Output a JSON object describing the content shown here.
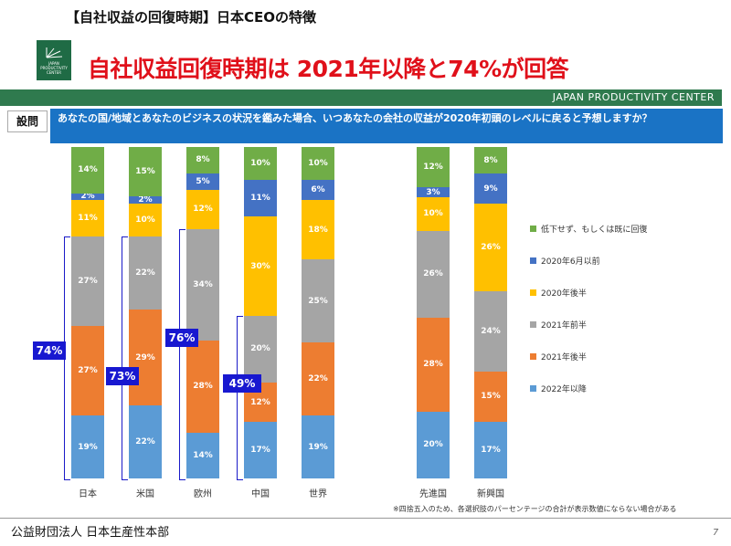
{
  "header": {
    "subtitle": "【自社収益の回復時期】日本CEOの特徴",
    "title": "自社収益回復時期は 2021年以降と74%が回答",
    "band_text": "JAPAN PRODUCTIVITY CENTER",
    "logo_text": "JAPAN PRODUCTIVITY CENTER"
  },
  "question": {
    "label": "設問",
    "text": "あなたの国/地域とあなたのビジネスの状況を鑑みた場合、いつあなたの会社の収益が2020年初頭のレベルに戻ると予想しますか？"
  },
  "chart_data": {
    "type": "bar",
    "stacked": true,
    "percent": true,
    "categories": [
      "日本",
      "米国",
      "欧州",
      "中国",
      "世界",
      "",
      "先進国",
      "新興国"
    ],
    "series": [
      {
        "name": "2022年以降",
        "color": "#5b9bd5",
        "values": [
          19,
          22,
          14,
          17,
          19,
          null,
          20,
          17
        ]
      },
      {
        "name": "2021年後半",
        "color": "#ed7d31",
        "values": [
          27,
          29,
          28,
          12,
          22,
          null,
          28,
          15
        ]
      },
      {
        "name": "2021年前半",
        "color": "#a5a5a5",
        "values": [
          27,
          22,
          34,
          20,
          25,
          null,
          26,
          24
        ]
      },
      {
        "name": "2020年後半",
        "color": "#ffc000",
        "values": [
          11,
          10,
          12,
          30,
          18,
          null,
          10,
          26
        ]
      },
      {
        "name": "2020年6月以前",
        "color": "#4472c4",
        "values": [
          2,
          2,
          5,
          11,
          6,
          null,
          3,
          9
        ]
      },
      {
        "name": "低下せず、もしくは既に回復",
        "color": "#70ad47",
        "values": [
          14,
          15,
          8,
          10,
          10,
          null,
          12,
          8
        ]
      }
    ],
    "callouts": [
      {
        "category": "日本",
        "label": "74%"
      },
      {
        "category": "米国",
        "label": "73%"
      },
      {
        "category": "欧州",
        "label": "76%"
      },
      {
        "category": "中国",
        "label": "49%"
      }
    ],
    "legend_position": "right",
    "grid": false
  },
  "footnote": "※四捨五入のため、各選択肢のパーセンテージの合計が表示数値にならない場合がある",
  "footer": {
    "org": "公益財団法人 日本生産性本部",
    "page": "7"
  }
}
